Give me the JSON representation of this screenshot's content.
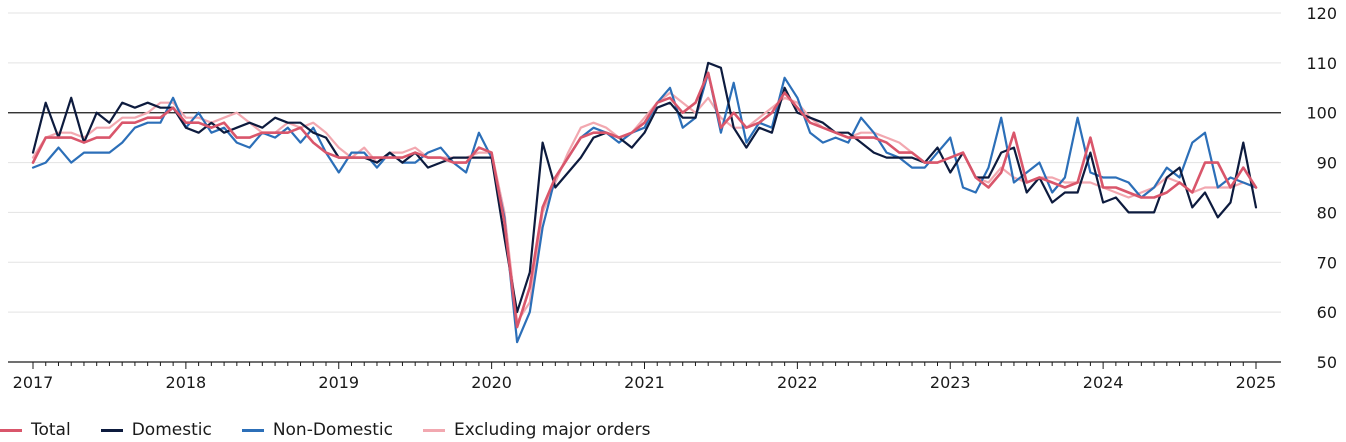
{
  "chart_data": {
    "type": "line",
    "title": "",
    "xlabel": "",
    "ylabel": "",
    "ylim": [
      50,
      120
    ],
    "xlim": [
      "2017-01",
      "2025-01"
    ],
    "yticks": [
      50,
      60,
      70,
      80,
      90,
      100,
      110,
      120
    ],
    "xtick_labels": [
      "2017",
      "2018",
      "2019",
      "2020",
      "2021",
      "2022",
      "2023",
      "2024",
      "2025"
    ],
    "reference_line": 100,
    "grid": "horizontal",
    "legend_position": "bottom-left",
    "x": [
      "2017-01",
      "2017-02",
      "2017-03",
      "2017-04",
      "2017-05",
      "2017-06",
      "2017-07",
      "2017-08",
      "2017-09",
      "2017-10",
      "2017-11",
      "2017-12",
      "2018-01",
      "2018-02",
      "2018-03",
      "2018-04",
      "2018-05",
      "2018-06",
      "2018-07",
      "2018-08",
      "2018-09",
      "2018-10",
      "2018-11",
      "2018-12",
      "2019-01",
      "2019-02",
      "2019-03",
      "2019-04",
      "2019-05",
      "2019-06",
      "2019-07",
      "2019-08",
      "2019-09",
      "2019-10",
      "2019-11",
      "2019-12",
      "2020-01",
      "2020-02",
      "2020-03",
      "2020-04",
      "2020-05",
      "2020-06",
      "2020-07",
      "2020-08",
      "2020-09",
      "2020-10",
      "2020-11",
      "2020-12",
      "2021-01",
      "2021-02",
      "2021-03",
      "2021-04",
      "2021-05",
      "2021-06",
      "2021-07",
      "2021-08",
      "2021-09",
      "2021-10",
      "2021-11",
      "2021-12",
      "2022-01",
      "2022-02",
      "2022-03",
      "2022-04",
      "2022-05",
      "2022-06",
      "2022-07",
      "2022-08",
      "2022-09",
      "2022-10",
      "2022-11",
      "2022-12",
      "2023-01",
      "2023-02",
      "2023-03",
      "2023-04",
      "2023-05",
      "2023-06",
      "2023-07",
      "2023-08",
      "2023-09",
      "2023-10",
      "2023-11",
      "2023-12",
      "2024-01",
      "2024-02",
      "2024-03",
      "2024-04",
      "2024-05",
      "2024-06",
      "2024-07",
      "2024-08",
      "2024-09",
      "2024-10",
      "2024-11",
      "2024-12",
      "2025-01"
    ],
    "series": [
      {
        "name": "Total",
        "color": "#d9566b",
        "values": [
          90,
          95,
          95,
          95,
          94,
          95,
          95,
          98,
          98,
          99,
          99,
          101,
          98,
          98,
          97,
          98,
          95,
          95,
          96,
          96,
          96,
          97,
          94,
          92,
          91,
          91,
          91,
          91,
          91,
          91,
          92,
          91,
          91,
          90,
          90,
          93,
          92,
          78,
          57,
          65,
          81,
          87,
          91,
          95,
          96,
          96,
          95,
          96,
          98,
          102,
          103,
          100,
          102,
          108,
          97,
          100,
          97,
          98,
          100,
          104,
          101,
          98,
          97,
          96,
          95,
          95,
          95,
          94,
          92,
          92,
          90,
          90,
          91,
          92,
          87,
          85,
          88,
          96,
          86,
          87,
          86,
          85,
          86,
          95,
          85,
          85,
          84,
          83,
          83,
          84,
          86,
          84,
          90,
          90,
          85,
          89,
          85
        ]
      },
      {
        "name": "Domestic",
        "color": "#0d1b3e",
        "values": [
          92,
          102,
          95,
          103,
          94,
          100,
          98,
          102,
          101,
          102,
          101,
          101,
          97,
          96,
          98,
          96,
          97,
          98,
          97,
          99,
          98,
          98,
          96,
          95,
          91,
          91,
          91,
          90,
          92,
          90,
          92,
          89,
          90,
          91,
          91,
          91,
          91,
          75,
          60,
          68,
          94,
          85,
          88,
          91,
          95,
          96,
          95,
          93,
          96,
          101,
          102,
          99,
          99,
          110,
          109,
          97,
          93,
          97,
          96,
          105,
          100,
          99,
          98,
          96,
          96,
          94,
          92,
          91,
          91,
          91,
          90,
          93,
          88,
          92,
          87,
          87,
          92,
          93,
          84,
          87,
          82,
          84,
          84,
          92,
          82,
          83,
          80,
          80,
          80,
          87,
          89,
          81,
          84,
          79,
          82,
          94,
          81
        ]
      },
      {
        "name": "Non-Domestic",
        "color": "#2c6fb8",
        "values": [
          89,
          90,
          93,
          90,
          92,
          92,
          92,
          94,
          97,
          98,
          98,
          103,
          97,
          100,
          96,
          97,
          94,
          93,
          96,
          95,
          97,
          94,
          97,
          92,
          88,
          92,
          92,
          89,
          92,
          90,
          90,
          92,
          93,
          90,
          88,
          96,
          91,
          79,
          54,
          60,
          77,
          87,
          91,
          95,
          97,
          96,
          94,
          96,
          97,
          102,
          105,
          97,
          99,
          108,
          96,
          106,
          94,
          98,
          97,
          107,
          103,
          96,
          94,
          95,
          94,
          99,
          96,
          92,
          91,
          89,
          89,
          92,
          95,
          85,
          84,
          89,
          99,
          86,
          88,
          90,
          84,
          87,
          99,
          88,
          87,
          87,
          86,
          83,
          85,
          89,
          87,
          94,
          96,
          85,
          87,
          86,
          85
        ]
      },
      {
        "name": "Excluding major orders",
        "color": "#f2a8b0",
        "values": [
          91,
          95,
          96,
          96,
          95,
          97,
          97,
          99,
          99,
          100,
          102,
          102,
          99,
          99,
          98,
          99,
          100,
          98,
          96,
          96,
          98,
          97,
          98,
          96,
          93,
          91,
          93,
          90,
          92,
          92,
          93,
          91,
          91,
          91,
          91,
          92,
          92,
          80,
          58,
          62,
          80,
          86,
          92,
          97,
          98,
          97,
          95,
          96,
          99,
          102,
          104,
          102,
          100,
          103,
          99,
          97,
          97,
          99,
          101,
          103,
          102,
          99,
          97,
          96,
          95,
          96,
          96,
          95,
          94,
          92,
          90,
          90,
          91,
          92,
          87,
          86,
          89,
          87,
          86,
          87,
          87,
          86,
          86,
          86,
          85,
          84,
          83,
          84,
          85,
          87,
          86,
          84,
          85,
          85,
          85,
          86,
          85
        ]
      }
    ]
  },
  "legend": {
    "items": [
      {
        "label": "Total",
        "color": "#d9566b"
      },
      {
        "label": "Domestic",
        "color": "#0d1b3e"
      },
      {
        "label": "Non-Domestic",
        "color": "#2c6fb8"
      },
      {
        "label": "Excluding major orders",
        "color": "#f2a8b0"
      }
    ]
  }
}
